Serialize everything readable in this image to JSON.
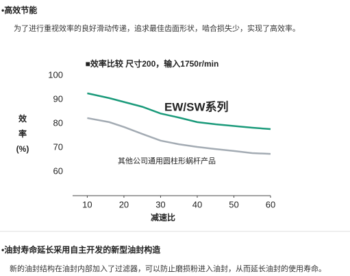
{
  "section1": {
    "heading": "•高效节能",
    "text": "为了进行重视效率的良好滑动传递，追求最佳齿面形状，啮合损失少，实现了高效率。"
  },
  "chart_data": {
    "type": "line",
    "title": "■效率比较 尺寸200，输入1750r/min",
    "x_label": "减速比",
    "y_label": "效率(%)",
    "x": [
      10,
      16,
      20,
      25,
      30,
      35,
      40,
      45,
      50,
      55,
      60
    ],
    "series": [
      {
        "name": "EW/SW系列",
        "color": "#1a9a7a",
        "values": [
          92.6,
          90.6,
          89,
          87,
          84.2,
          82.5,
          80.6,
          79.7,
          79,
          78.3,
          77.7
        ]
      },
      {
        "name": "其他公司通用圆柱形蜗杆产品",
        "color": "#a3abb3",
        "values": [
          82.3,
          80.6,
          78.6,
          75.7,
          72.9,
          71.4,
          70.3,
          69.4,
          68.6,
          67.7,
          67.4
        ]
      }
    ],
    "xlim": [
      6,
      60
    ],
    "ylim": [
      50,
      100
    ],
    "xticks": [
      10,
      20,
      30,
      40,
      50,
      60
    ],
    "yticks": [
      60,
      70,
      80,
      90,
      100
    ]
  },
  "section2": {
    "heading": "•油封寿命延长采用自主开发的新型油封构造",
    "text": "新的油封结构在油封内部加入了过滤器，可以防止磨损粉进入油封，从而延长油封的使用寿命。"
  }
}
